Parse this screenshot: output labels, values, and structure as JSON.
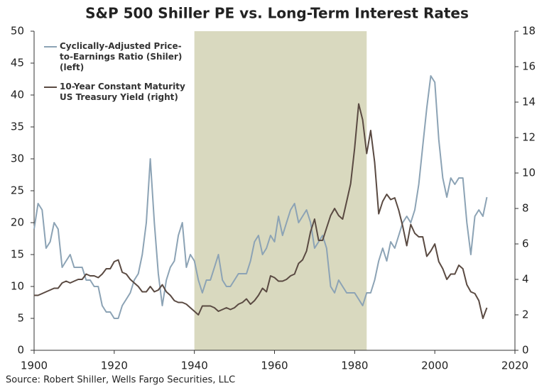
{
  "chart_data": {
    "type": "line",
    "title": "S&P 500 Shiller PE vs. Long-Term Interest Rates",
    "source": "Source: Robert Shiller, Wells Fargo Securities, LLC",
    "shaded_span": [
      1940,
      1983
    ],
    "shade_color": "#d9d9bf",
    "x": [
      1900,
      1901,
      1902,
      1903,
      1904,
      1905,
      1906,
      1907,
      1908,
      1909,
      1910,
      1911,
      1912,
      1913,
      1914,
      1915,
      1916,
      1917,
      1918,
      1919,
      1920,
      1921,
      1922,
      1923,
      1924,
      1925,
      1926,
      1927,
      1928,
      1929,
      1930,
      1931,
      1932,
      1933,
      1934,
      1935,
      1936,
      1937,
      1938,
      1939,
      1940,
      1941,
      1942,
      1943,
      1944,
      1945,
      1946,
      1947,
      1948,
      1949,
      1950,
      1951,
      1952,
      1953,
      1954,
      1955,
      1956,
      1957,
      1958,
      1959,
      1960,
      1961,
      1962,
      1963,
      1964,
      1965,
      1966,
      1967,
      1968,
      1969,
      1970,
      1971,
      1972,
      1973,
      1974,
      1975,
      1976,
      1977,
      1978,
      1979,
      1980,
      1981,
      1982,
      1983,
      1984,
      1985,
      1986,
      1987,
      1988,
      1989,
      1990,
      1991,
      1992,
      1993,
      1994,
      1995,
      1996,
      1997,
      1998,
      1999,
      2000,
      2001,
      2002,
      2003,
      2004,
      2005,
      2006,
      2007,
      2008,
      2009,
      2010,
      2011,
      2012,
      2013
    ],
    "series": [
      {
        "name": "Cyclically-Adjusted Price-to-Earnings Ratio (Shiler) (left)",
        "color": "#8ca3b5",
        "axis": "y",
        "values": [
          19,
          23,
          22,
          16,
          17,
          20,
          19,
          13,
          14,
          15,
          13,
          13,
          13,
          11,
          11,
          10,
          10,
          7,
          6,
          6,
          5,
          5,
          7,
          8,
          9,
          11,
          12,
          15,
          20,
          30,
          20,
          12,
          7,
          11,
          13,
          14,
          18,
          20,
          13,
          15,
          14,
          11,
          9,
          11,
          11,
          13,
          15,
          11,
          10,
          10,
          11,
          12,
          12,
          12,
          14,
          17,
          18,
          15,
          16,
          18,
          17,
          21,
          18,
          20,
          22,
          23,
          20,
          21,
          22,
          20,
          16,
          17,
          18,
          16,
          10,
          9,
          11,
          10,
          9,
          9,
          9,
          8,
          7,
          9,
          9,
          11,
          14,
          16,
          14,
          17,
          16,
          18,
          20,
          21,
          20,
          22,
          26,
          32,
          38,
          43,
          42,
          33,
          27,
          24,
          27,
          26,
          27,
          27,
          20,
          15,
          21,
          22,
          21,
          24
        ]
      },
      {
        "name": "10-Year Constant Maturity US Treasury Yield (right)",
        "color": "#5a4a42",
        "axis": "y2",
        "values": [
          3.1,
          3.1,
          3.2,
          3.3,
          3.4,
          3.5,
          3.5,
          3.8,
          3.9,
          3.8,
          3.9,
          4.0,
          4.0,
          4.3,
          4.2,
          4.2,
          4.1,
          4.3,
          4.6,
          4.6,
          5.0,
          5.1,
          4.4,
          4.3,
          4.0,
          3.8,
          3.6,
          3.3,
          3.3,
          3.6,
          3.3,
          3.4,
          3.7,
          3.3,
          3.1,
          2.8,
          2.7,
          2.7,
          2.6,
          2.4,
          2.2,
          2.0,
          2.5,
          2.5,
          2.5,
          2.4,
          2.2,
          2.3,
          2.4,
          2.3,
          2.4,
          2.6,
          2.7,
          2.9,
          2.6,
          2.8,
          3.1,
          3.5,
          3.3,
          4.2,
          4.1,
          3.9,
          3.9,
          4.0,
          4.2,
          4.3,
          4.9,
          5.1,
          5.6,
          6.7,
          7.4,
          6.2,
          6.2,
          6.9,
          7.6,
          8.0,
          7.6,
          7.4,
          8.4,
          9.4,
          11.4,
          13.9,
          13.0,
          11.1,
          12.4,
          10.6,
          7.7,
          8.4,
          8.8,
          8.5,
          8.6,
          7.9,
          7.0,
          5.9,
          7.1,
          6.6,
          6.4,
          6.4,
          5.3,
          5.6,
          6.0,
          5.0,
          4.6,
          4.0,
          4.3,
          4.3,
          4.8,
          4.6,
          3.7,
          3.3,
          3.2,
          2.8,
          1.8,
          2.4
        ]
      }
    ],
    "xlim": [
      1900,
      2020
    ],
    "xticks": [
      1900,
      1920,
      1940,
      1960,
      1980,
      2000,
      2020
    ],
    "ylim": [
      0,
      50
    ],
    "yticks": [
      0,
      5,
      10,
      15,
      20,
      25,
      30,
      35,
      40,
      45,
      50
    ],
    "y2lim": [
      0,
      18
    ],
    "y2ticks": [
      0,
      2,
      4,
      6,
      8,
      10,
      12,
      14,
      16,
      18
    ],
    "legend": "upper left"
  }
}
